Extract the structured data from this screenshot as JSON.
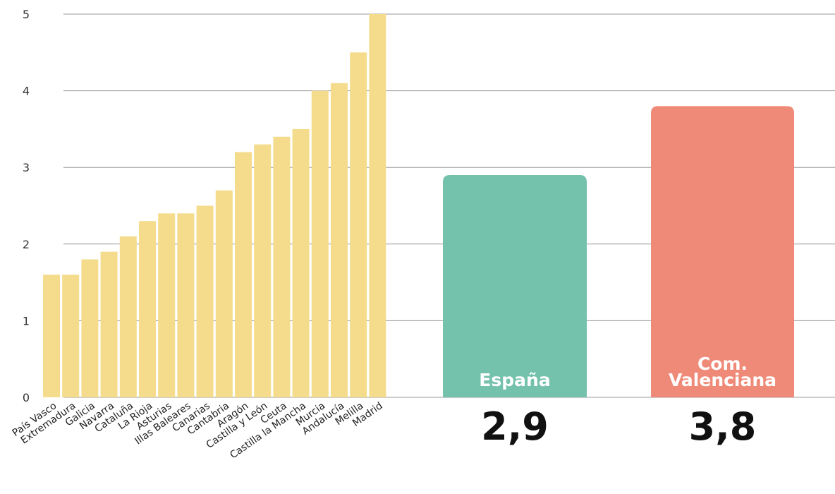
{
  "chart_data": {
    "type": "bar",
    "y_ticks": [
      "0",
      "1",
      "2",
      "3",
      "4",
      "5"
    ],
    "ylim": [
      0,
      5
    ],
    "grid": true,
    "regions": {
      "categories": [
        "País Vasco",
        "Extremadura",
        "Galicia",
        "Navarra",
        "Cataluña",
        "La Rioja",
        "Asturias",
        "Illas Baleares",
        "Canarias",
        "Cantabria",
        "Aragón",
        "Castilla y León",
        "Ceuta",
        "Castilla la Mancha",
        "Murcia",
        "Andalucía",
        "Melilla",
        "Madrid"
      ],
      "values": [
        1.6,
        1.6,
        1.8,
        1.9,
        2.1,
        2.3,
        2.4,
        2.4,
        2.5,
        2.7,
        3.2,
        3.3,
        3.4,
        3.5,
        4.0,
        4.1,
        4.5,
        5.0
      ],
      "color": "#F5DC8C"
    },
    "highlights": [
      {
        "label": [
          "España"
        ],
        "value": 2.9,
        "display": "2,9",
        "color": "#74C1AC"
      },
      {
        "label": [
          "Com.",
          "Valenciana"
        ],
        "value": 3.8,
        "display": "3,8",
        "color": "#F08A78"
      }
    ]
  }
}
